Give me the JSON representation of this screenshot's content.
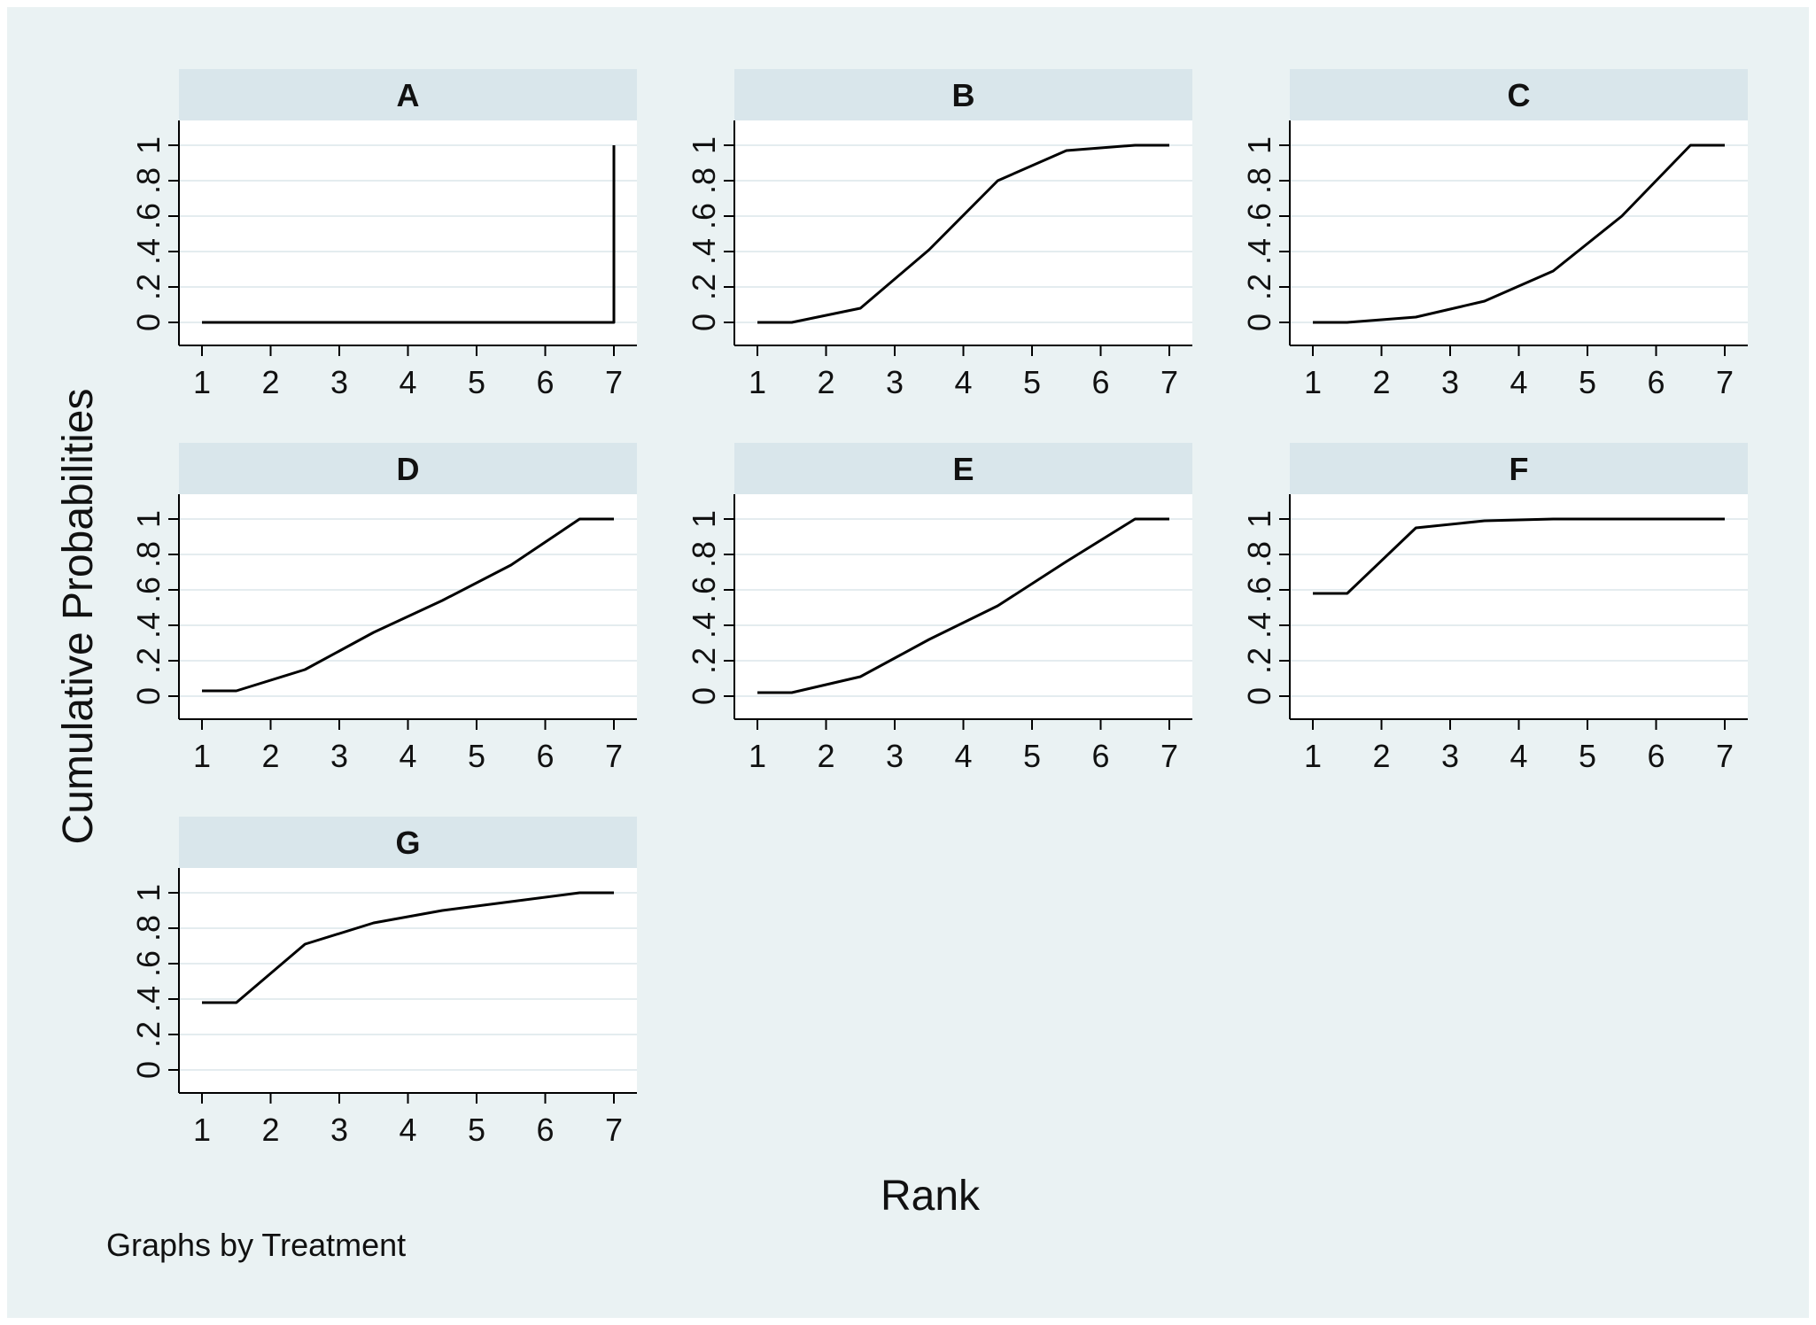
{
  "figure": {
    "ylabel": "Cumulative Probabilities",
    "xlabel": "Rank",
    "note": "Graphs by Treatment"
  },
  "colors": {
    "outer_background": "#eaf2f3",
    "plot_background": "#ffffff",
    "panel_header": "#d9e6eb",
    "grid": "#e4ecef",
    "line": "#000000"
  },
  "chart_data": {
    "type": "line",
    "layout": "small-multiples",
    "grid": true,
    "xlim": [
      1,
      7
    ],
    "ylim": [
      0,
      1
    ],
    "xticks": [
      "1",
      "2",
      "3",
      "4",
      "5",
      "6",
      "7"
    ],
    "yticks": [
      "0",
      ".2",
      ".4",
      ".6",
      ".8",
      "1"
    ],
    "panels": [
      {
        "title": "A",
        "x": [
          1,
          1.5,
          2.5,
          3.5,
          4.5,
          5.5,
          6.5,
          7,
          7
        ],
        "y": [
          0,
          0,
          0,
          0,
          0,
          0,
          0,
          0,
          1
        ]
      },
      {
        "title": "B",
        "x": [
          1,
          1.5,
          2.5,
          3.5,
          4.5,
          5.5,
          6.5,
          7
        ],
        "y": [
          0,
          0,
          0.08,
          0.41,
          0.8,
          0.97,
          1,
          1
        ]
      },
      {
        "title": "C",
        "x": [
          1,
          1.5,
          2.5,
          3.5,
          4.5,
          5.5,
          6.5,
          7
        ],
        "y": [
          0,
          0,
          0.03,
          0.12,
          0.29,
          0.6,
          1,
          1
        ]
      },
      {
        "title": "D",
        "x": [
          1,
          1.5,
          2.5,
          3.5,
          4.5,
          5.5,
          6.5,
          7
        ],
        "y": [
          0.03,
          0.03,
          0.15,
          0.36,
          0.54,
          0.74,
          1,
          1
        ]
      },
      {
        "title": "E",
        "x": [
          1,
          1.5,
          2.5,
          3.5,
          4.5,
          5.5,
          6.5,
          7
        ],
        "y": [
          0.02,
          0.02,
          0.11,
          0.32,
          0.51,
          0.76,
          1,
          1
        ]
      },
      {
        "title": "F",
        "x": [
          1,
          1.5,
          2.5,
          3.5,
          4.5,
          5.5,
          6.5,
          7
        ],
        "y": [
          0.58,
          0.58,
          0.95,
          0.99,
          1,
          1,
          1,
          1
        ]
      },
      {
        "title": "G",
        "x": [
          1,
          1.5,
          2.5,
          3.5,
          4.5,
          5.5,
          6.5,
          7
        ],
        "y": [
          0.38,
          0.38,
          0.71,
          0.83,
          0.9,
          0.95,
          1,
          1
        ]
      }
    ]
  }
}
